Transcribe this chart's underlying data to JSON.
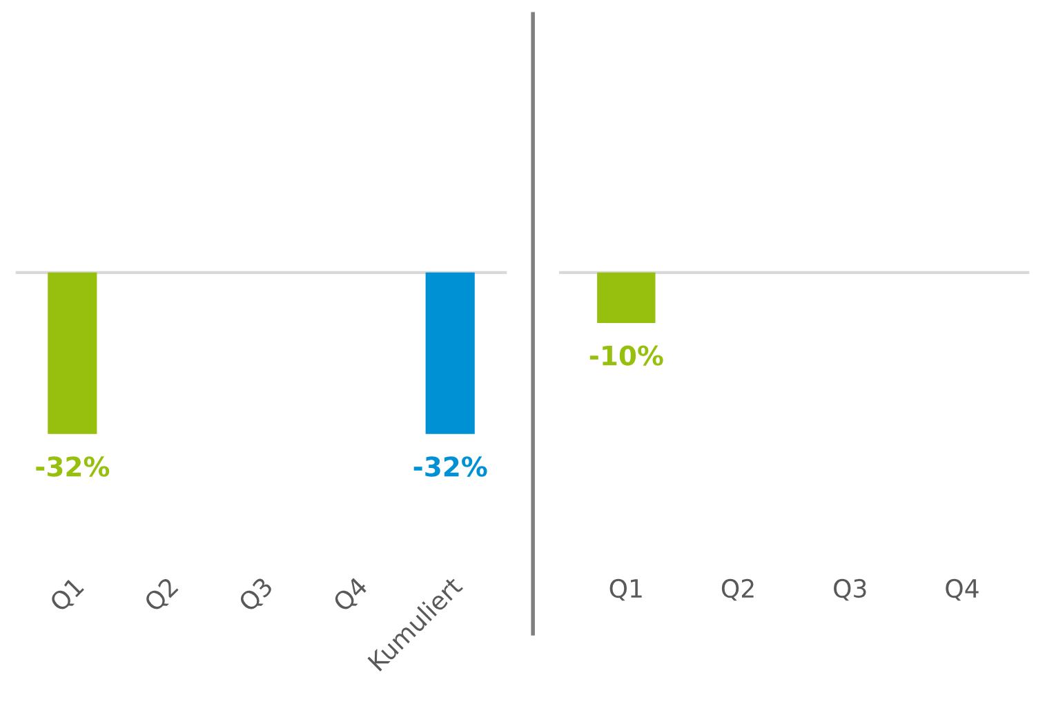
{
  "chart_data": [
    {
      "type": "bar",
      "categories": [
        "Q1",
        "Q2",
        "Q3",
        "Q4",
        "Kumuliert"
      ],
      "values": [
        -32,
        null,
        null,
        null,
        -32
      ],
      "colors": [
        "#97bf0d",
        "#97bf0d",
        "#97bf0d",
        "#97bf0d",
        "#0091d5"
      ],
      "value_labels": [
        "-32%",
        null,
        null,
        null,
        "-32%"
      ],
      "tick_labels": "x",
      "grid": false,
      "legend": false
    },
    {
      "type": "bar",
      "categories": [
        "Q1",
        "Q2",
        "Q3",
        "Q4"
      ],
      "values": [
        -10,
        null,
        null,
        null
      ],
      "colors": [
        "#97bf0d",
        "#97bf0d",
        "#97bf0d",
        "#97bf0d"
      ],
      "value_labels": [
        "-10%",
        null,
        null,
        null
      ],
      "tick_labels": "x",
      "grid": false,
      "legend": false
    }
  ]
}
